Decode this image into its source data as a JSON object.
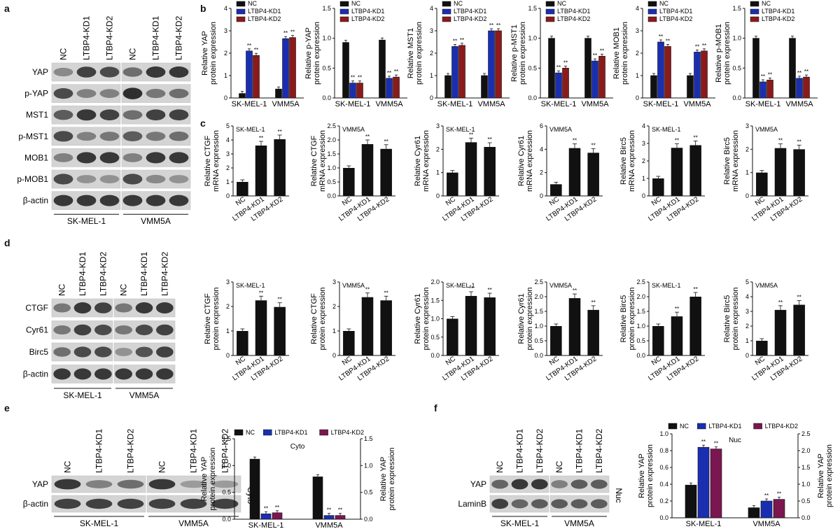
{
  "panels": {
    "a": "a",
    "b": "b",
    "c": "c",
    "d": "d",
    "e": "e",
    "f": "f"
  },
  "blot_a": {
    "lanes": [
      "NC",
      "LTBP4-KD1",
      "LTBP4-KD2",
      "NC",
      "LTBP4-KD1",
      "LTBP4-KD2"
    ],
    "rows": [
      "YAP",
      "p-YAP",
      "MST1",
      "p-MST1",
      "MOB1",
      "p-MOB1",
      "β-actin"
    ],
    "groups": [
      "SK-MEL-1",
      "VMM5A"
    ]
  },
  "blot_d": {
    "lanes": [
      "NC",
      "LTBP4-KD1",
      "LTBP4-KD2",
      "NC",
      "LTBP4-KD1",
      "LTBP4-KD2"
    ],
    "rows": [
      "CTGF",
      "Cyr61",
      "Birc5",
      "β-actin"
    ],
    "groups": [
      "SK-MEL-1",
      "VMM5A"
    ]
  },
  "blot_e": {
    "lanes": [
      "NC",
      "LTBP4-KD1",
      "LTBP4-KD2",
      "NC",
      "LTBP4-KD1",
      "LTBP4-KD2"
    ],
    "rows": [
      "YAP",
      "β-actin"
    ],
    "side": "Cyto",
    "groups": [
      "SK-MEL-1",
      "VMM5A"
    ]
  },
  "blot_f": {
    "lanes": [
      "NC",
      "LTBP4-KD1",
      "LTBP4-KD2",
      "NC",
      "LTBP4-KD1",
      "LTBP4-KD2"
    ],
    "rows": [
      "YAP",
      "LaminB"
    ],
    "side": "Nuc",
    "groups": [
      "SK-MEL-1",
      "VMM5A"
    ]
  },
  "legend_b": [
    "NC",
    "LTBP4-KD1",
    "LTBP4-KD2"
  ],
  "colors": {
    "NC": "#111111",
    "KD1": "#1a2fb0",
    "KD2": "#8c1a1a",
    "KD2e": "#7a1650"
  },
  "sig": "**",
  "chart_data": [
    {
      "id": "b1",
      "type": "bar",
      "ylabel": [
        "Relative YAP",
        "protein expression"
      ],
      "categories": [
        "SK-MEL-1",
        "VMM5A"
      ],
      "ylim": [
        0,
        4
      ],
      "yticks": [
        "0",
        "1",
        "2",
        "3",
        "4"
      ],
      "series": [
        {
          "name": "NC",
          "values": [
            0.2,
            0.4
          ]
        },
        {
          "name": "LTBP4-KD1",
          "values": [
            2.1,
            2.65
          ]
        },
        {
          "name": "LTBP4-KD2",
          "values": [
            1.9,
            2.7
          ]
        }
      ]
    },
    {
      "id": "b2",
      "type": "bar",
      "ylabel": [
        "Relative p-YAP",
        "protein expression"
      ],
      "categories": [
        "SK-MEL-1",
        "VMM5A"
      ],
      "ylim": [
        0,
        1.5
      ],
      "yticks": [
        "0.0",
        "0.5",
        "1.0",
        "1.5"
      ],
      "series": [
        {
          "name": "NC",
          "values": [
            0.93,
            0.97
          ]
        },
        {
          "name": "LTBP4-KD1",
          "values": [
            0.25,
            0.33
          ]
        },
        {
          "name": "LTBP4-KD2",
          "values": [
            0.25,
            0.35
          ]
        }
      ]
    },
    {
      "id": "b3",
      "type": "bar",
      "ylabel": [
        "Relative MST1",
        "protein expression"
      ],
      "categories": [
        "SK-MEL-1",
        "VMM5A"
      ],
      "ylim": [
        0,
        4
      ],
      "yticks": [
        "0",
        "1",
        "2",
        "3",
        "4"
      ],
      "series": [
        {
          "name": "NC",
          "values": [
            1.0,
            1.0
          ]
        },
        {
          "name": "LTBP4-KD1",
          "values": [
            2.3,
            3.0
          ]
        },
        {
          "name": "LTBP4-KD2",
          "values": [
            2.35,
            3.0
          ]
        }
      ]
    },
    {
      "id": "b4",
      "type": "bar",
      "ylabel": [
        "Relative p-MST1",
        "protein expression"
      ],
      "categories": [
        "SK-MEL-1",
        "VMM5A"
      ],
      "ylim": [
        0,
        1.5
      ],
      "yticks": [
        "0.0",
        "0.5",
        "1.0",
        "1.5"
      ],
      "series": [
        {
          "name": "NC",
          "values": [
            1.0,
            1.0
          ]
        },
        {
          "name": "LTBP4-KD1",
          "values": [
            0.42,
            0.62
          ]
        },
        {
          "name": "LTBP4-KD2",
          "values": [
            0.5,
            0.7
          ]
        }
      ]
    },
    {
      "id": "b5",
      "type": "bar",
      "ylabel": [
        "Relative MOB1",
        "protein expression"
      ],
      "categories": [
        "SK-MEL-1",
        "VMM5A"
      ],
      "ylim": [
        0,
        4
      ],
      "yticks": [
        "0",
        "1",
        "2",
        "3",
        "4"
      ],
      "series": [
        {
          "name": "NC",
          "values": [
            1.0,
            1.0
          ]
        },
        {
          "name": "LTBP4-KD1",
          "values": [
            2.5,
            2.05
          ]
        },
        {
          "name": "LTBP4-KD2",
          "values": [
            2.3,
            2.1
          ]
        }
      ]
    },
    {
      "id": "b6",
      "type": "bar",
      "ylabel": [
        "Relative p-MOB1",
        "protein expression"
      ],
      "categories": [
        "SK-MEL-1",
        "VMM5A"
      ],
      "ylim": [
        0,
        1.5
      ],
      "yticks": [
        "0.0",
        "0.5",
        "1.0",
        "1.5"
      ],
      "series": [
        {
          "name": "NC",
          "values": [
            1.0,
            1.0
          ]
        },
        {
          "name": "LTBP4-KD1",
          "values": [
            0.27,
            0.33
          ]
        },
        {
          "name": "LTBP4-KD2",
          "values": [
            0.3,
            0.35
          ]
        }
      ]
    },
    {
      "id": "c1",
      "type": "bar",
      "tag": "SK-MEL-1",
      "ylabel": [
        "Relative CTGF",
        "mRNA expression"
      ],
      "categories": [
        "NC",
        "LTBP4-KD1",
        "LTBP4-KD2"
      ],
      "ylim": [
        0,
        5
      ],
      "yticks": [
        "0",
        "1",
        "2",
        "3",
        "4",
        "5"
      ],
      "values": [
        1.0,
        3.6,
        4.05
      ]
    },
    {
      "id": "c2",
      "type": "bar",
      "tag": "VMM5A",
      "ylabel": [
        "Relative CTGF",
        "mRNA expression"
      ],
      "categories": [
        "NC",
        "LTBP4-KD1",
        "LTBP4-KD2"
      ],
      "ylim": [
        0,
        2.5
      ],
      "yticks": [
        "0.0",
        "0.5",
        "1.0",
        "1.5",
        "2.0",
        "2.5"
      ],
      "values": [
        1.0,
        1.85,
        1.68
      ]
    },
    {
      "id": "c3",
      "type": "bar",
      "tag": "SK-MEL-1",
      "ylabel": [
        "Relative Cyr61",
        "mRNA expression"
      ],
      "categories": [
        "NC",
        "LTBP4-KD1",
        "LTBP4-KD2"
      ],
      "ylim": [
        0,
        3
      ],
      "yticks": [
        "0",
        "1",
        "2",
        "3"
      ],
      "values": [
        1.0,
        2.3,
        2.1
      ]
    },
    {
      "id": "c4",
      "type": "bar",
      "tag": "VMM5A",
      "ylabel": [
        "Relative Cyr61",
        "mRNA expression"
      ],
      "categories": [
        "NC",
        "LTBP4-KD1",
        "LTBP4-KD2"
      ],
      "ylim": [
        0,
        6
      ],
      "yticks": [
        "0",
        "2",
        "4",
        "6"
      ],
      "values": [
        1.0,
        4.1,
        3.7
      ]
    },
    {
      "id": "c5",
      "type": "bar",
      "tag": "SK-MEL-1",
      "ylabel": [
        "Relative Birc5",
        "mRNA expression"
      ],
      "categories": [
        "NC",
        "LTBP4-KD1",
        "LTBP4-KD2"
      ],
      "ylim": [
        0,
        4
      ],
      "yticks": [
        "0",
        "1",
        "2",
        "3",
        "4"
      ],
      "values": [
        1.0,
        2.75,
        2.9
      ]
    },
    {
      "id": "c6",
      "type": "bar",
      "tag": "VMM5A",
      "ylabel": [
        "Relative Birc5",
        "mRNA expression"
      ],
      "categories": [
        "NC",
        "LTBP4-KD1",
        "LTBP4-KD2"
      ],
      "ylim": [
        0,
        3
      ],
      "yticks": [
        "0",
        "1",
        "2",
        "3"
      ],
      "values": [
        1.0,
        2.05,
        2.0
      ]
    },
    {
      "id": "d1",
      "type": "bar",
      "tag": "SK-MEL-1",
      "ylabel": [
        "Relative CTGF",
        "protein expression"
      ],
      "categories": [
        "NC",
        "LTBP4-KD1",
        "LTBP4-KD2"
      ],
      "ylim": [
        0,
        3
      ],
      "yticks": [
        "0",
        "1",
        "2",
        "3"
      ],
      "values": [
        1.0,
        2.25,
        1.98
      ]
    },
    {
      "id": "d2",
      "type": "bar",
      "tag": "VMM5A",
      "ylabel": [
        "Relative CTGF",
        "protein expression"
      ],
      "categories": [
        "NC",
        "LTBP4-KD1",
        "LTBP4-KD2"
      ],
      "ylim": [
        0,
        3
      ],
      "yticks": [
        "0",
        "1",
        "2",
        "3"
      ],
      "values": [
        1.0,
        2.38,
        2.25
      ]
    },
    {
      "id": "d3",
      "type": "bar",
      "tag": "SK-MEL-1",
      "ylabel": [
        "Relative Cyr61",
        "protein expression"
      ],
      "categories": [
        "NC",
        "LTBP4-KD1",
        "LTBP4-KD2"
      ],
      "ylim": [
        0,
        2.0
      ],
      "yticks": [
        "0.0",
        "0.5",
        "1.0",
        "1.5",
        "2.0"
      ],
      "values": [
        1.0,
        1.62,
        1.58
      ]
    },
    {
      "id": "d4",
      "type": "bar",
      "tag": "VMM5A",
      "ylabel": [
        "Relative Cyr61",
        "protein expression"
      ],
      "categories": [
        "NC",
        "LTBP4-KD1",
        "LTBP4-KD2"
      ],
      "ylim": [
        0,
        2.5
      ],
      "yticks": [
        "0.0",
        "0.5",
        "1.0",
        "1.5",
        "2.0",
        "2.5"
      ],
      "values": [
        1.0,
        1.95,
        1.55
      ]
    },
    {
      "id": "d5",
      "type": "bar",
      "tag": "SK-MEL-1",
      "ylabel": [
        "Relative Birc5",
        "protein expression"
      ],
      "categories": [
        "NC",
        "LTBP4-KD1",
        "LTBP4-KD2"
      ],
      "ylim": [
        0,
        2.5
      ],
      "yticks": [
        "0.0",
        "0.5",
        "1.0",
        "1.5",
        "2.0",
        "2.5"
      ],
      "values": [
        1.0,
        1.33,
        2.0
      ]
    },
    {
      "id": "d6",
      "type": "bar",
      "tag": "VMM5A",
      "ylabel": [
        "Relative Birc5",
        "protein expression"
      ],
      "categories": [
        "NC",
        "LTBP4-KD1",
        "LTBP4-KD2"
      ],
      "ylim": [
        0,
        5
      ],
      "yticks": [
        "0",
        "1",
        "2",
        "3",
        "4",
        "5"
      ],
      "values": [
        1.0,
        3.1,
        3.45
      ]
    },
    {
      "id": "e1",
      "type": "bar",
      "title": "Cyto",
      "ylabel": [
        "Relative YAP",
        "protein expression"
      ],
      "ylabel_right": [
        "Relative YAP",
        "protein expression"
      ],
      "categories": [
        "SK-MEL-1",
        "VMM5A"
      ],
      "ylim": [
        0,
        1.5
      ],
      "yticks": [
        "0.0",
        "0.5",
        "1.0",
        "1.5"
      ],
      "series": [
        {
          "name": "NC",
          "values": [
            1.12,
            0.79
          ]
        },
        {
          "name": "LTBP4-KD1",
          "values": [
            0.1,
            0.07
          ]
        },
        {
          "name": "LTBP4-KD2",
          "values": [
            0.12,
            0.07
          ]
        }
      ]
    },
    {
      "id": "f1",
      "type": "bar",
      "title": "Nuc",
      "ylabel": [
        "Relative YAP",
        "protein expression"
      ],
      "ylabel_right": [
        "Relative YAP",
        "protein expression"
      ],
      "categories": [
        "SK-MEL-1",
        "VMM5A"
      ],
      "ylim": [
        0,
        1.0
      ],
      "yticks": [
        "0.0",
        "0.2",
        "0.4",
        "0.6",
        "0.8",
        "1.0"
      ],
      "yticks_right": [
        "0.0",
        "0.5",
        "1.0",
        "1.5",
        "2.0",
        "2.5"
      ],
      "series": [
        {
          "name": "NC",
          "values": [
            0.39,
            0.12
          ]
        },
        {
          "name": "LTBP4-KD1",
          "values": [
            0.84,
            0.2
          ]
        },
        {
          "name": "LTBP4-KD2",
          "values": [
            0.82,
            0.22
          ]
        }
      ]
    }
  ]
}
